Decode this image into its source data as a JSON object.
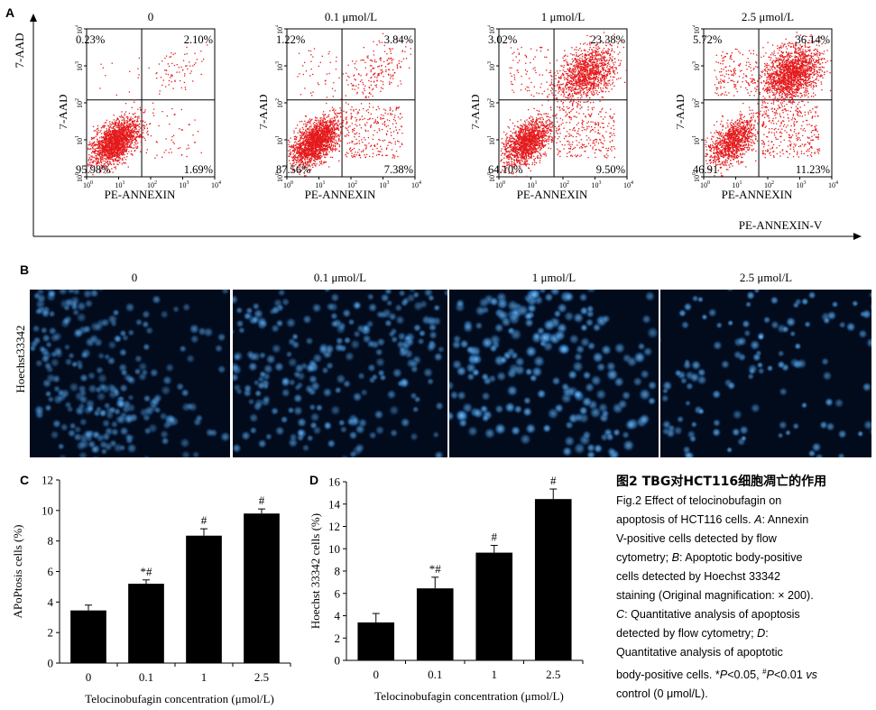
{
  "panels": {
    "A": {
      "letter": "A",
      "y_axis_label": "7-AAD",
      "x_axis_label": "PE-ANNEXIN-V",
      "plots": [
        {
          "condition": "0",
          "q_ul": "0.23%",
          "q_ur": "2.10%",
          "q_ll": "95.98%",
          "q_lr": "1.69%",
          "x_label": "PE-ANNEXIN",
          "y_label": "7-AAD"
        },
        {
          "condition": "0.1 μmol/L",
          "q_ul": "1.22%",
          "q_ur": "3.84%",
          "q_ll": "87.56%",
          "q_lr": "7.38%",
          "x_label": "PE-ANNEXIN",
          "y_label": "7-AAD"
        },
        {
          "condition": "1 μmol/L",
          "q_ul": "3.02%",
          "q_ur": "23.38%",
          "q_ll": "64.10%",
          "q_lr": "9.50%",
          "x_label": "PE-ANNEXIN",
          "y_label": "7-AAD"
        },
        {
          "condition": "2.5 μmol/L",
          "q_ul": "5.72%",
          "q_ur": "36.14%",
          "q_ll": "46.91",
          "q_lr": "11.23%",
          "x_label": "PE-ANNEXIN",
          "y_label": "7-AAD"
        }
      ],
      "ticks": {
        "d0": "0",
        "d1": "1",
        "d2": "2",
        "d3": "3",
        "d4": "4"
      }
    },
    "B": {
      "letter": "B",
      "stain_label": "Hoechst33342",
      "conditions": [
        "0",
        "0.1 μmol/L",
        "1 μmol/L",
        "2.5 μmol/L"
      ]
    },
    "C": {
      "letter": "C",
      "chart_data": {
        "type": "bar",
        "categories": [
          "0",
          "0.1",
          "1",
          "2.5"
        ],
        "values": [
          3.45,
          5.2,
          8.35,
          9.8
        ],
        "errors": [
          0.35,
          0.25,
          0.45,
          0.3
        ],
        "annotations": [
          "",
          "*#",
          "#",
          "#"
        ],
        "ylabel": "APoPtosis cells (%)",
        "xlabel": "Telocinobufagin concentration (μmol/L)",
        "ylim": [
          0,
          12
        ],
        "yticks": [
          "0",
          "2",
          "4",
          "6",
          "8",
          "10",
          "12"
        ],
        "grid": false,
        "bar_color": "#000000"
      }
    },
    "D": {
      "letter": "D",
      "chart_data": {
        "type": "bar",
        "categories": [
          "0",
          "0.1",
          "1",
          "2.5"
        ],
        "values": [
          3.4,
          6.45,
          9.65,
          14.45
        ],
        "errors": [
          0.8,
          1.0,
          0.65,
          0.9
        ],
        "annotations": [
          "",
          "*#",
          "#",
          "#"
        ],
        "ylabel": "Hoechst 33342 cells (%)",
        "xlabel": "Telocinobufagin concentration (μmol/L)",
        "ylim": [
          0,
          16
        ],
        "yticks": [
          "0",
          "2",
          "4",
          "6",
          "8",
          "10",
          "12",
          "14",
          "16"
        ],
        "grid": false,
        "bar_color": "#000000"
      }
    }
  },
  "caption": {
    "title_zh": "图2  TBG对HCT116细胞凋亡的作用",
    "l1": "Fig.2   Effect  of  telocinobufagin  on",
    "l2": "apoptosis of HCT116 cells. ",
    "l2a": "A",
    "l2b": ": Annexin",
    "l3": "V-positive    cells    detected    by    flow",
    "l4a": "cytometry; ",
    "l4b": "B",
    "l4c": ": Apoptotic body-positive",
    "l5": "cells    detected    by    Hoechst    33342",
    "l6": "staining (Original magnification: × 200).",
    "l7a": "C",
    "l7b": ": Quantitative analysis of apoptosis",
    "l8a": "detected   by   flow   cytometry; ",
    "l8b": "D",
    "l8c": ":",
    "l9": "Quantitative    analysis    of    apoptotic",
    "l10a": "body-positive cells. *",
    "l10b": "P",
    "l10c": "<0.05, ",
    "l10d": "#",
    "l10e": "P",
    "l10f": "<0.01 ",
    "l10g": "vs",
    "l11": "control (0 μmol/L)."
  },
  "colors": {
    "dots": "#e41a1c",
    "nuclei": "#3a8fd8",
    "background_micro": "#020b1c"
  }
}
